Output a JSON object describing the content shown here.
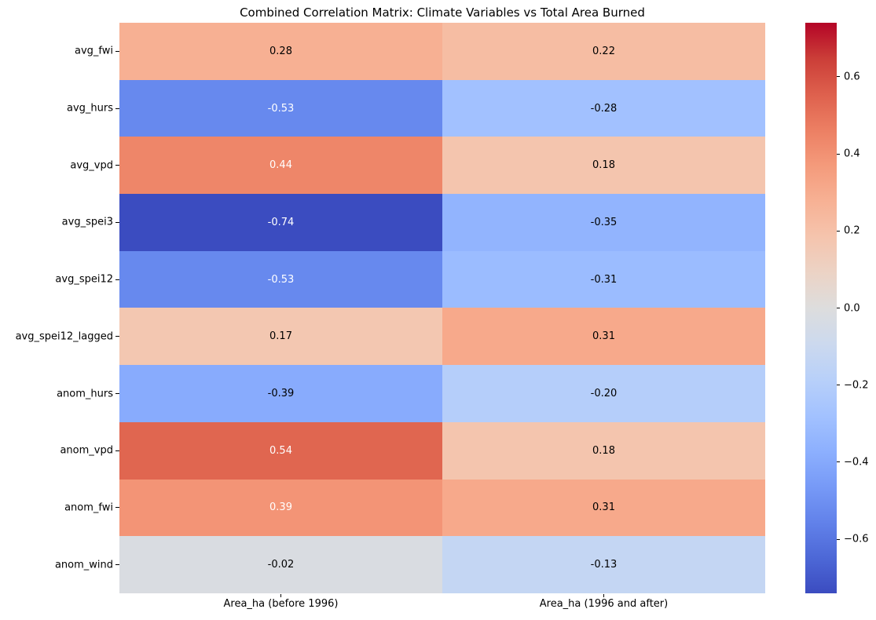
{
  "title": "Combined Correlation Matrix: Climate Variables vs Total Area Burned",
  "chart_data": {
    "type": "heatmap",
    "title": "Combined Correlation Matrix: Climate Variables vs Total Area Burned",
    "colormap": "coolwarm",
    "x_categories": [
      "Area_ha (before 1996)",
      "Area_ha (1996 and after)"
    ],
    "y_categories": [
      "avg_fwi",
      "avg_hurs",
      "avg_vpd",
      "avg_spei3",
      "avg_spei12",
      "avg_spei12_lagged",
      "anom_hurs",
      "anom_vpd",
      "anom_fwi",
      "anom_wind"
    ],
    "values": [
      [
        0.28,
        0.22
      ],
      [
        -0.53,
        -0.28
      ],
      [
        0.44,
        0.18
      ],
      [
        -0.74,
        -0.35
      ],
      [
        -0.53,
        -0.31
      ],
      [
        0.17,
        0.31
      ],
      [
        -0.39,
        -0.2
      ],
      [
        0.54,
        0.18
      ],
      [
        0.39,
        0.31
      ],
      [
        -0.02,
        -0.13
      ]
    ],
    "cell_labels": [
      [
        "0.28",
        "0.22"
      ],
      [
        "-0.53",
        "-0.28"
      ],
      [
        "0.44",
        "0.18"
      ],
      [
        "-0.74",
        "-0.35"
      ],
      [
        "-0.53",
        "-0.31"
      ],
      [
        "0.17",
        "0.31"
      ],
      [
        "-0.39",
        "-0.20"
      ],
      [
        "0.54",
        "0.18"
      ],
      [
        "0.39",
        "0.31"
      ],
      [
        "-0.02",
        "-0.13"
      ]
    ],
    "cell_colors": [
      [
        "#F7B093",
        "#F6BDA3"
      ],
      [
        "#6789EE",
        "#A2C1FF"
      ],
      [
        "#EE8669",
        "#F4C5AE"
      ],
      [
        "#3B4CC0",
        "#92B4FE"
      ],
      [
        "#6789EE",
        "#9BBCFF"
      ],
      [
        "#F3C7B1",
        "#F7A98B"
      ],
      [
        "#88ABFD",
        "#B5CEFA"
      ],
      [
        "#E06650",
        "#F4C5AE"
      ],
      [
        "#F39476",
        "#F7A98B"
      ],
      [
        "#D9DCE1",
        "#C4D6F3"
      ]
    ],
    "cell_text_colors": [
      [
        "#000000",
        "#000000"
      ],
      [
        "#FFFFFF",
        "#000000"
      ],
      [
        "#FFFFFF",
        "#000000"
      ],
      [
        "#FFFFFF",
        "#000000"
      ],
      [
        "#FFFFFF",
        "#000000"
      ],
      [
        "#000000",
        "#000000"
      ],
      [
        "#000000",
        "#000000"
      ],
      [
        "#FFFFFF",
        "#000000"
      ],
      [
        "#FFFFFF",
        "#000000"
      ],
      [
        "#000000",
        "#000000"
      ]
    ],
    "vmin": -0.74,
    "vmax": 0.74,
    "grid": false,
    "colorbar": {
      "position": "right",
      "ticks": [
        {
          "value": 0.6,
          "label": "0.6"
        },
        {
          "value": 0.4,
          "label": "0.4"
        },
        {
          "value": 0.2,
          "label": "0.2"
        },
        {
          "value": 0.0,
          "label": "0.0"
        },
        {
          "value": -0.2,
          "label": "−0.2"
        },
        {
          "value": -0.4,
          "label": "−0.4"
        },
        {
          "value": -0.6,
          "label": "−0.6"
        }
      ],
      "gradient_stops_bottom_to_top": [
        "#3B4CC0",
        "#4D68D7",
        "#6282EA",
        "#779AF7",
        "#8DB0FE",
        "#A3C2FF",
        "#B8D0F9",
        "#CCD9EE",
        "#DDDDDD",
        "#ECD3C5",
        "#F5C4AD",
        "#F7B194",
        "#F49A7B",
        "#EC7F63",
        "#DE604D",
        "#CB3E38",
        "#B40426"
      ]
    }
  }
}
